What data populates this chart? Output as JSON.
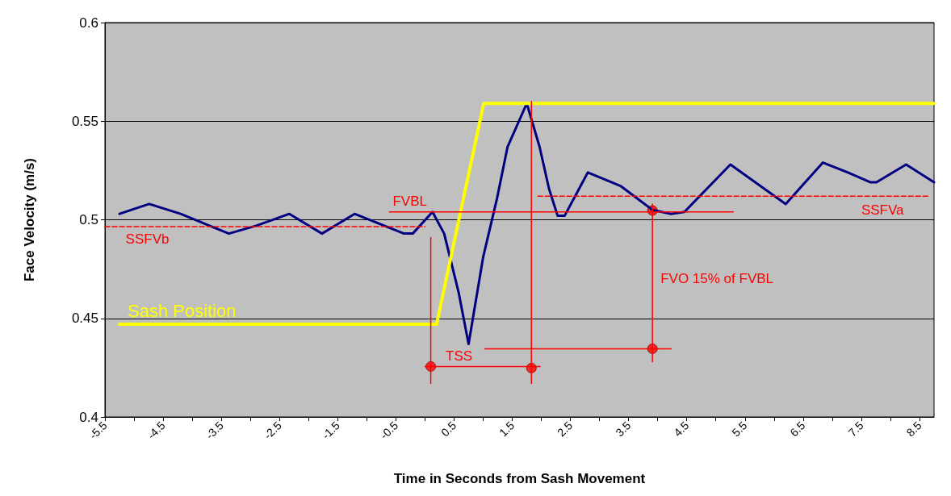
{
  "chart_data": {
    "type": "line",
    "xlabel": "Time in Seconds from Sash Movement",
    "ylabel": "Face Velocity (m/s)",
    "xlim": [
      -5.5,
      8.75
    ],
    "ylim": [
      0.4,
      0.6
    ],
    "xticks": [
      -5.5,
      {
        "value": -5,
        "label": null
      },
      -4.5,
      {
        "value": -4,
        "label": null
      },
      -3.5,
      {
        "value": -3,
        "label": null
      },
      -2.5,
      {
        "value": -2,
        "label": null
      },
      -1.5,
      {
        "value": -1,
        "label": null
      },
      -0.5,
      {
        "value": 0,
        "label": null
      },
      0.5,
      {
        "value": 1,
        "label": null
      },
      1.5,
      {
        "value": 2,
        "label": null
      },
      2.5,
      {
        "value": 3,
        "label": null
      },
      3.5,
      {
        "value": 4,
        "label": null
      },
      4.5,
      {
        "value": 5,
        "label": null
      },
      5.5,
      {
        "value": 6,
        "label": null
      },
      6.5,
      {
        "value": 7,
        "label": null
      },
      7.5,
      {
        "value": 8,
        "label": null
      },
      8.5
    ],
    "yticks": [
      0.4,
      0.45,
      0.5,
      0.55,
      0.6
    ],
    "grid": "y",
    "legend": false,
    "marker": "none",
    "series": [
      {
        "color": "#000080",
        "x": [
          -5.25,
          -4.74,
          -4.2,
          -3.37,
          -2.9,
          -2.33,
          -1.77,
          -1.21,
          -0.36,
          -0.21,
          0.13,
          0.33,
          0.58,
          0.75,
          1.0,
          1.24,
          1.42,
          1.75,
          1.97,
          2.13,
          2.28,
          2.4,
          2.8,
          3.37,
          3.91,
          4.23,
          4.46,
          5.25,
          6.2,
          6.84,
          7.27,
          7.66,
          7.76,
          8.27,
          8.75
        ],
        "values": [
          0.503,
          0.508,
          0.503,
          0.493,
          0.497,
          0.503,
          0.493,
          0.503,
          0.493,
          0.493,
          0.504,
          0.493,
          0.463,
          0.437,
          0.481,
          0.511,
          0.537,
          0.559,
          0.537,
          0.516,
          0.502,
          0.502,
          0.524,
          0.517,
          0.505,
          0.503,
          0.504,
          0.528,
          0.508,
          0.529,
          0.524,
          0.519,
          0.519,
          0.528,
          0.519
        ]
      },
      {
        "name": "Sash Position",
        "color": "#ffff00",
        "x": [
          -5.25,
          0.2,
          1.01,
          8.75
        ],
        "values": [
          0.447,
          0.447,
          0.559,
          0.559
        ]
      },
      {
        "color": "#ff0000",
        "x": [
          -0.61,
          5.3
        ],
        "values": [
          0.504,
          0.504
        ]
      },
      {
        "color": "#ff0000",
        "line_style": "dashed",
        "x": [
          -5.5,
          0.0
        ],
        "values": [
          0.4965,
          0.4965
        ]
      },
      {
        "color": "#ff0000",
        "line_style": "dashed",
        "x": [
          1.94,
          8.68
        ],
        "values": [
          0.512,
          0.512
        ]
      },
      {
        "color": "#ff0000",
        "x": [
          0.1,
          0.1
        ],
        "values": [
          0.491,
          0.417
        ]
      },
      {
        "color": "#ff0000",
        "x": [
          1.83,
          1.83
        ],
        "values": [
          0.56,
          0.417
        ]
      },
      {
        "color": "#ff0000",
        "x": [
          0.0,
          1.98
        ],
        "values": [
          0.4256,
          0.4256
        ]
      },
      {
        "color": "#ff0000",
        "x": [
          3.91,
          3.91
        ],
        "values": [
          0.508,
          0.428
        ]
      },
      {
        "color": "#ff0000",
        "x": [
          1.03,
          4.23
        ],
        "values": [
          0.4346,
          0.4346
        ]
      },
      {
        "type": "scatter",
        "marker": "circle",
        "color": "#ff0000",
        "x": [
          0.1,
          1.83,
          3.91,
          3.91
        ],
        "values": [
          0.4256,
          0.4248,
          0.4346,
          0.5047
        ]
      }
    ],
    "annotations": [
      {
        "text": "FVBL",
        "x": -0.61,
        "y": 0.504
      },
      {
        "text": "SSFVb",
        "x": -5.2,
        "y": 0.4965
      },
      {
        "text": "SSFVa",
        "x": 7.5,
        "y": 0.512
      },
      {
        "text": "FVO 15% of FVBL",
        "x": 3.91,
        "y": 0.47
      },
      {
        "text": "TSS",
        "x": 0.3,
        "y": 0.4256
      }
    ]
  }
}
